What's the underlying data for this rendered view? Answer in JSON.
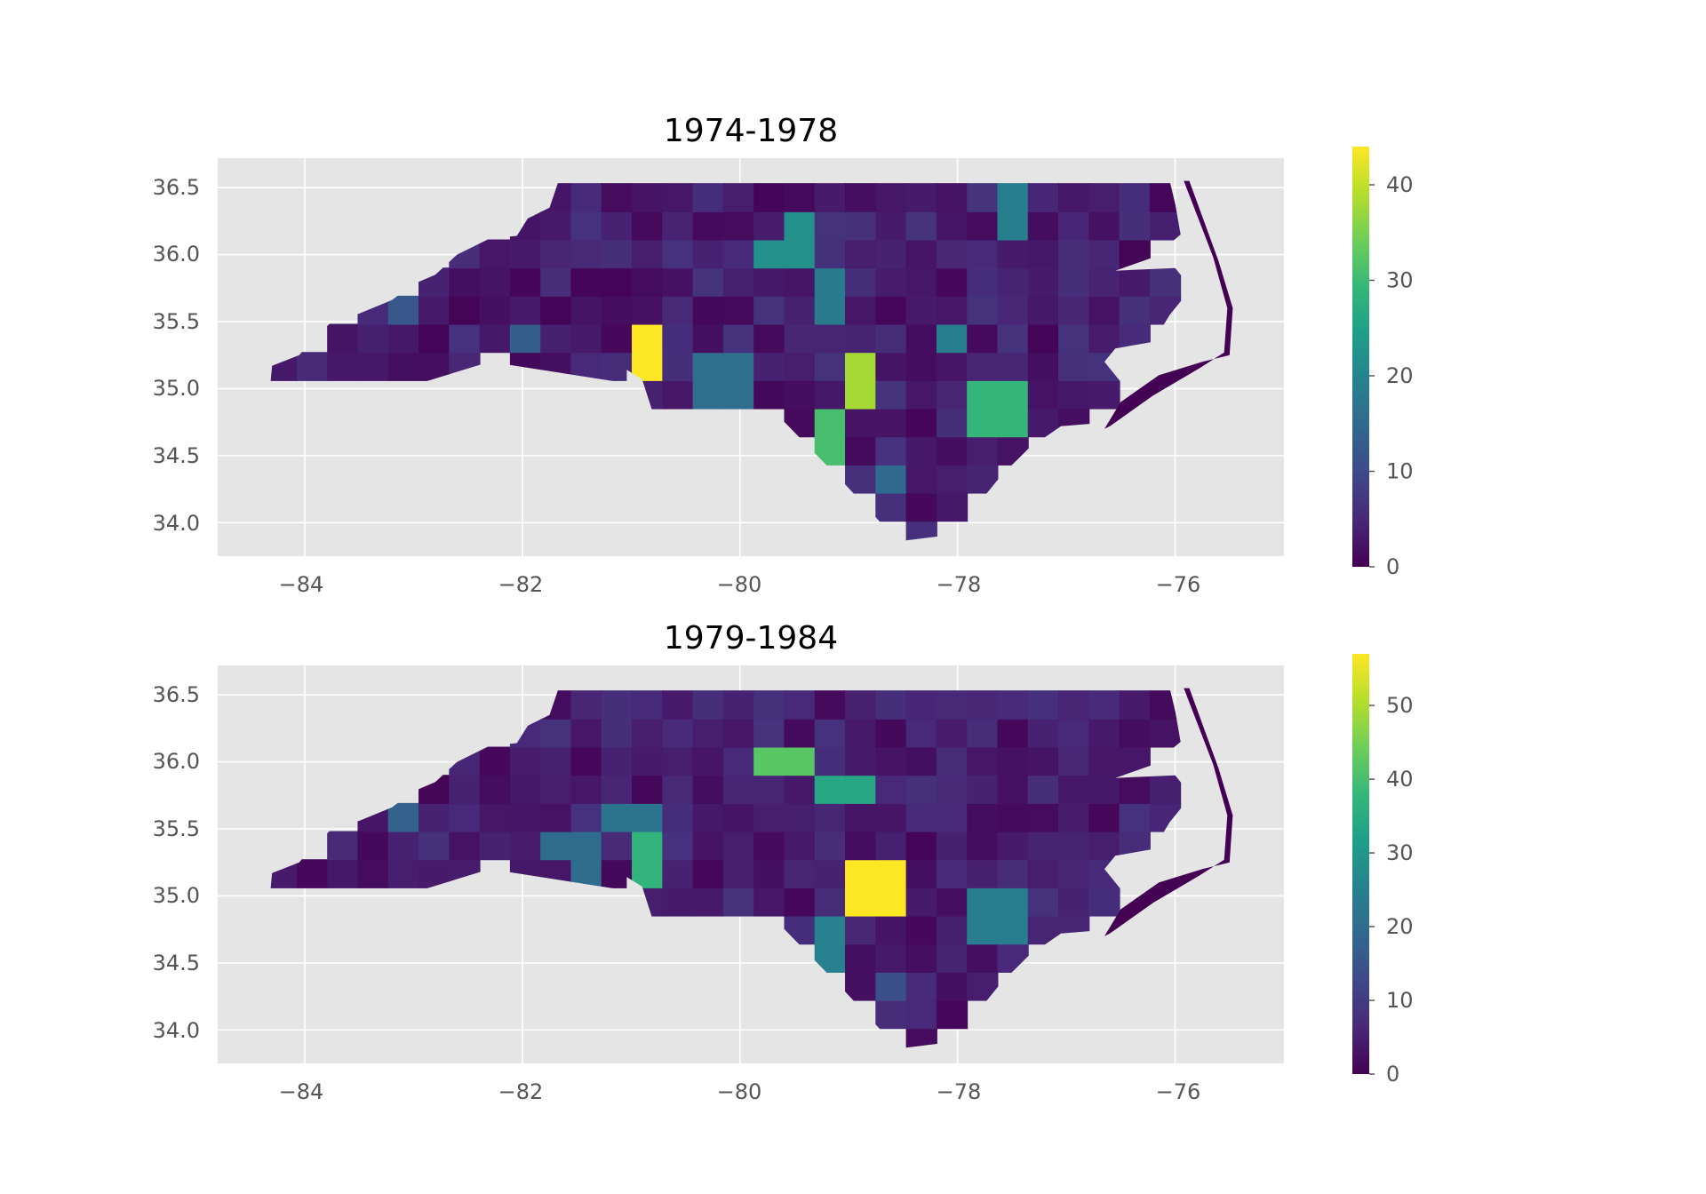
{
  "colors": {
    "panel_background": "#e5e5e5",
    "grid": "#ffffff",
    "tick_text": "#555555",
    "colormap": "viridis",
    "viridis_stops": [
      "#440154",
      "#482878",
      "#3e4989",
      "#31688e",
      "#26828e",
      "#1f9e89",
      "#35b779",
      "#6ece58",
      "#b5de2b",
      "#fde725"
    ]
  },
  "panels": [
    {
      "title": "1974-1978",
      "x_ticks": [
        "−84",
        "−82",
        "−80",
        "−78",
        "−76"
      ],
      "y_ticks": [
        "36.5",
        "36.0",
        "35.5",
        "35.0",
        "34.5",
        "34.0"
      ],
      "colorbar_ticks": [
        "0",
        "10",
        "20",
        "30",
        "40"
      ],
      "colorbar_max": 44,
      "map_data": {
        "type": "choropleth",
        "xlim": [
          -84.8,
          -75.0
        ],
        "ylim": [
          33.75,
          36.72
        ],
        "grid": true,
        "colormap": "viridis",
        "value_range": [
          0,
          44
        ],
        "highlights": [
          {
            "lon": -80.85,
            "lat": 35.25,
            "value": 44
          },
          {
            "lon": -78.85,
            "lat": 35.05,
            "value": 38
          },
          {
            "lon": -79.15,
            "lat": 34.65,
            "value": 31
          },
          {
            "lon": -77.65,
            "lat": 34.85,
            "value": 29
          },
          {
            "lon": -79.55,
            "lat": 36.08,
            "value": 22
          },
          {
            "lon": -77.55,
            "lat": 36.28,
            "value": 19
          },
          {
            "lon": -78.05,
            "lat": 35.38,
            "value": 19
          },
          {
            "lon": -79.15,
            "lat": 35.75,
            "value": 18
          },
          {
            "lon": -80.15,
            "lat": 35.05,
            "value": 16
          },
          {
            "lon": -78.55,
            "lat": 34.32,
            "value": 15
          },
          {
            "lon": -81.95,
            "lat": 35.38,
            "value": 13
          },
          {
            "lon": -83.05,
            "lat": 35.6,
            "value": 12
          }
        ]
      }
    },
    {
      "title": "1979-1984",
      "x_ticks": [
        "−84",
        "−82",
        "−80",
        "−78",
        "−76"
      ],
      "y_ticks": [
        "36.5",
        "36.0",
        "35.5",
        "35.0",
        "34.5",
        "34.0"
      ],
      "colorbar_ticks": [
        "0",
        "10",
        "20",
        "30",
        "40",
        "50"
      ],
      "colorbar_max": 57,
      "map_data": {
        "type": "choropleth",
        "xlim": [
          -84.8,
          -75.0
        ],
        "ylim": [
          33.75,
          36.72
        ],
        "grid": true,
        "colormap": "viridis",
        "value_range": [
          0,
          57
        ],
        "highlights": [
          {
            "lon": -78.75,
            "lat": 35.05,
            "value": 57
          },
          {
            "lon": -79.6,
            "lat": 36.05,
            "value": 42
          },
          {
            "lon": -80.9,
            "lat": 35.2,
            "value": 37
          },
          {
            "lon": -79.0,
            "lat": 35.8,
            "value": 34
          },
          {
            "lon": -79.15,
            "lat": 34.65,
            "value": 25
          },
          {
            "lon": -77.65,
            "lat": 34.85,
            "value": 24
          },
          {
            "lon": -81.0,
            "lat": 35.55,
            "value": 22
          },
          {
            "lon": -81.5,
            "lat": 35.3,
            "value": 20
          },
          {
            "lon": -83.05,
            "lat": 35.6,
            "value": 18
          },
          {
            "lon": -78.55,
            "lat": 34.32,
            "value": 14
          }
        ]
      }
    }
  ]
}
